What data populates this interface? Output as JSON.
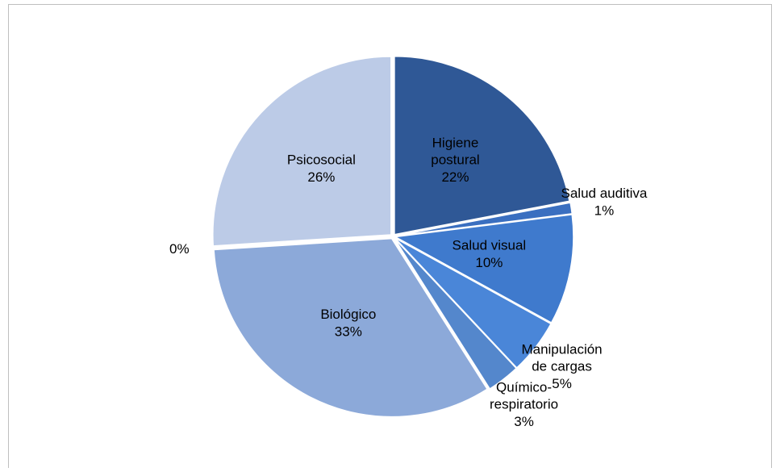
{
  "chart_data": {
    "type": "pie",
    "categories": [
      "Higiene postural",
      "Salud auditiva",
      "Salud visual",
      "Manipulación de cargas",
      "Químico-respiratorio",
      "Biológico",
      null,
      "Psicosocial"
    ],
    "values": [
      22,
      1,
      10,
      5,
      3,
      33,
      0,
      26
    ],
    "value_labels": [
      "22%",
      "1%",
      "10%",
      "5%",
      "3%",
      "33%",
      "0%",
      "26%"
    ],
    "colors": [
      "#2f5896",
      "#3a6fc0",
      "#3f7acd",
      "#4a86d8",
      "#5487cc",
      "#8ca9d9",
      "#a9bde2",
      "#bccbe7"
    ]
  }
}
